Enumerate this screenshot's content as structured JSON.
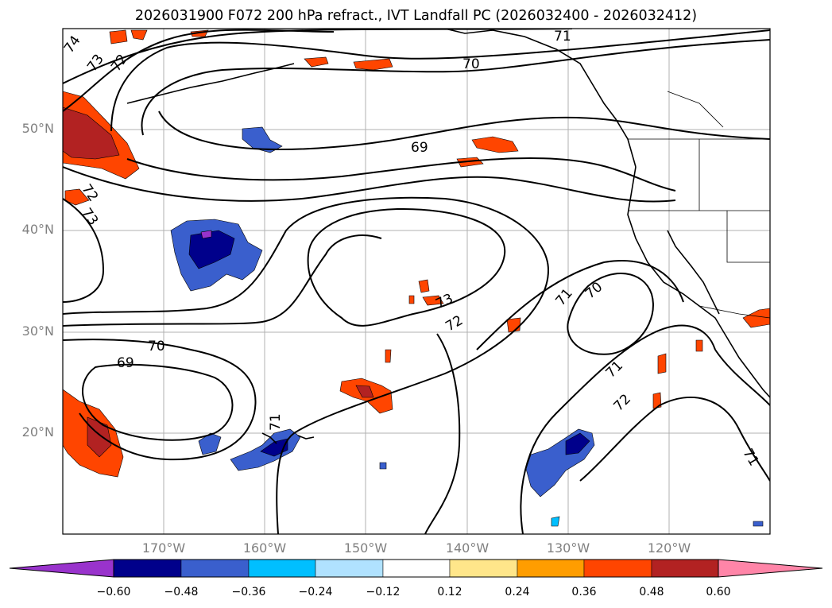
{
  "title": "2026031900 F072 200 hPa refract., IVT Landfall PC (2026032400 - 2026032412)",
  "map": {
    "lon_range": [
      -180,
      -110
    ],
    "lat_range": [
      10,
      60
    ],
    "lat_ticks": [
      "50°N",
      "40°N",
      "30°N",
      "20°N"
    ],
    "lon_ticks": [
      "170°W",
      "160°W",
      "150°W",
      "140°W",
      "130°W",
      "120°W"
    ],
    "grid": true,
    "land_color": "#000000",
    "contour_color": "#000000",
    "contour_labels": [
      "74",
      "73",
      "72",
      "71",
      "70",
      "69",
      "72",
      "73",
      "70",
      "69",
      "73",
      "72",
      "71",
      "70",
      "71",
      "72",
      "71",
      "71"
    ]
  },
  "colorbar": {
    "ticks": [
      "−0.60",
      "−0.48",
      "−0.36",
      "−0.24",
      "−0.12",
      "0.12",
      "0.24",
      "0.36",
      "0.48",
      "0.60"
    ],
    "colors": [
      "#9933cc",
      "#00008b",
      "#3a5fcd",
      "#00bfff",
      "#b0e2ff",
      "#ffffff",
      "#ffe68a",
      "#ff9d00",
      "#ff4500",
      "#b22222",
      "#ff85a8"
    ],
    "extend": "both"
  }
}
